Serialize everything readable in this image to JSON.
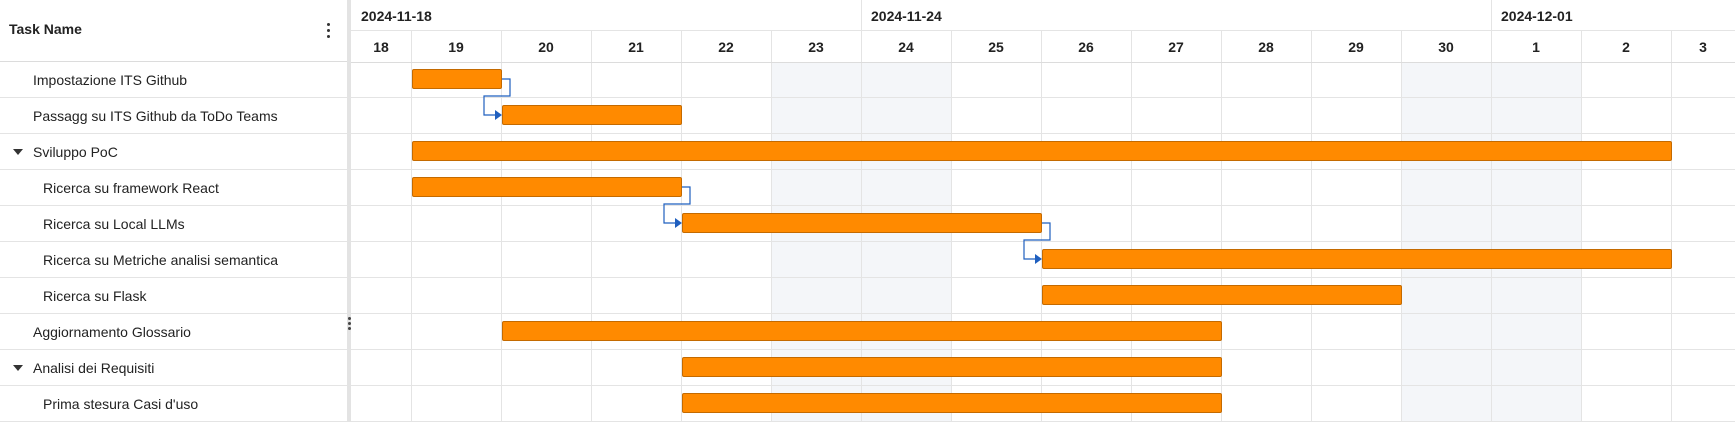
{
  "grid": {
    "column_header": "Task Name",
    "column_menu_icon": "more-vertical-icon"
  },
  "timeline": {
    "weeks": [
      {
        "label": "2024-11-18"
      },
      {
        "label": "2024-11-24"
      },
      {
        "label": "2024-12-01"
      }
    ],
    "days": [
      "18",
      "19",
      "20",
      "21",
      "22",
      "23",
      "24",
      "25",
      "26",
      "27",
      "28",
      "29",
      "30",
      "1",
      "2",
      "3"
    ],
    "weekend_days": [
      "23",
      "24",
      "30",
      "1"
    ],
    "colors": {
      "bar_fill": "#ff8a00",
      "bar_border": "#c46a00",
      "link": "#1f5fbf",
      "weekend_shade": "#f4f6f9",
      "grid_line": "#e4e4e4"
    }
  },
  "tasks": [
    {
      "name": "Impostazione ITS Github",
      "level": 1,
      "group": false,
      "start": "2024-11-19",
      "end": "2024-11-20"
    },
    {
      "name": "Passagg su ITS Github da ToDo Teams",
      "level": 1,
      "group": false,
      "start": "2024-11-20",
      "end": "2024-11-22"
    },
    {
      "name": "Sviluppo PoC",
      "level": 1,
      "group": true,
      "expanded": true,
      "start": "2024-11-19",
      "end": "2024-12-03"
    },
    {
      "name": "Ricerca su framework React",
      "level": 2,
      "group": false,
      "start": "2024-11-19",
      "end": "2024-11-22"
    },
    {
      "name": "Ricerca su Local LLMs",
      "level": 2,
      "group": false,
      "start": "2024-11-22",
      "end": "2024-11-26"
    },
    {
      "name": "Ricerca su Metriche analisi semantica",
      "level": 2,
      "group": false,
      "start": "2024-11-26",
      "end": "2024-12-03"
    },
    {
      "name": "Ricerca su Flask",
      "level": 2,
      "group": false,
      "start": "2024-11-26",
      "end": "2024-11-30"
    },
    {
      "name": "Aggiornamento Glossario",
      "level": 1,
      "group": false,
      "start": "2024-11-20",
      "end": "2024-11-28"
    },
    {
      "name": "Analisi dei Requisiti",
      "level": 1,
      "group": true,
      "expanded": true,
      "start": "2024-11-22",
      "end": "2024-11-28"
    },
    {
      "name": "Prima stesura Casi d'uso",
      "level": 2,
      "group": false,
      "start": "2024-11-22",
      "end": "2024-11-28"
    }
  ],
  "links": [
    {
      "from": 0,
      "to": 1
    },
    {
      "from": 3,
      "to": 4
    },
    {
      "from": 4,
      "to": 5
    }
  ]
}
